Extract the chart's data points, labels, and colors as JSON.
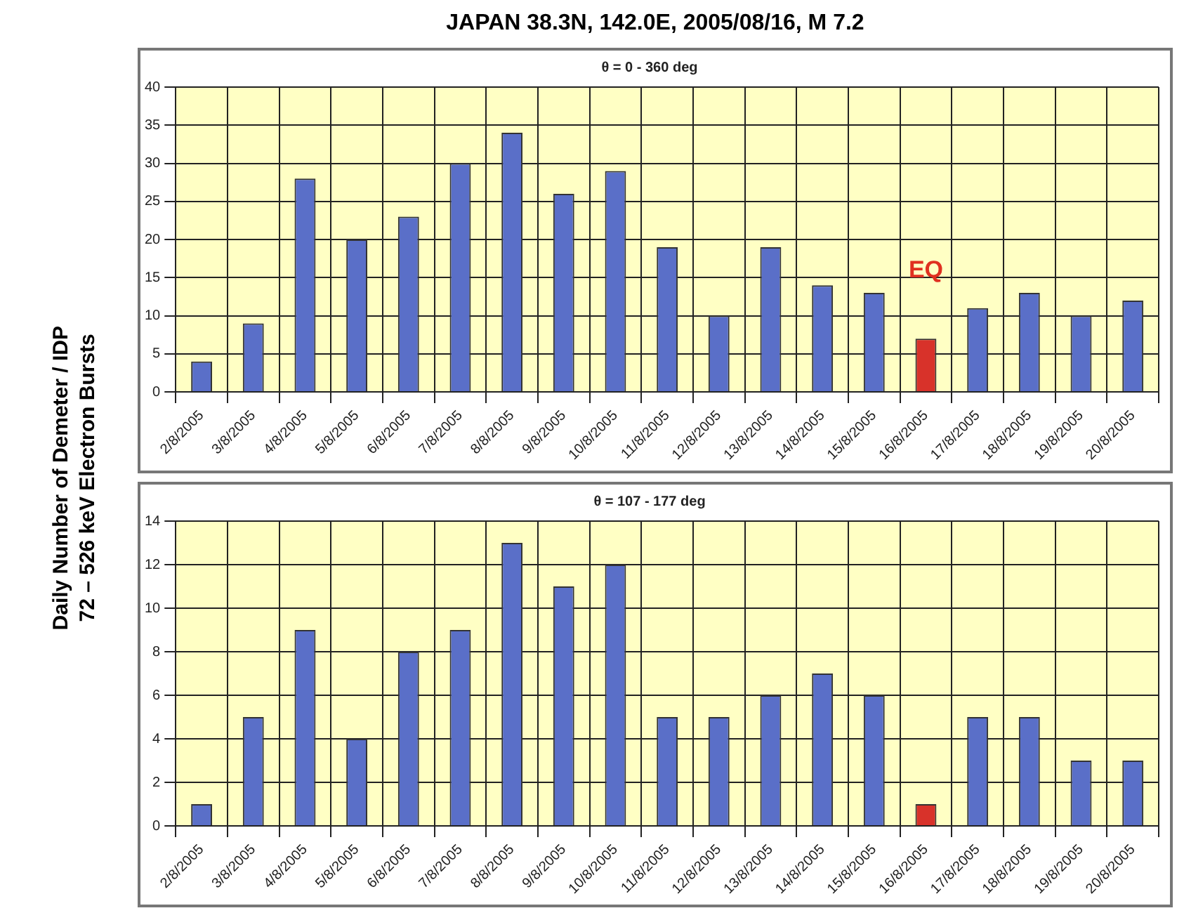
{
  "chart_data": [
    {
      "type": "bar",
      "title": "JAPAN 38.3N, 142.0E, 2005/08/16, M 7.2",
      "subtitle": "θ = 0 - 360 deg",
      "ylabel": "Daily Number of Demeter / IDP\n72 – 526 keV Electron Bursts",
      "categories": [
        "2/8/2005",
        "3/8/2005",
        "4/8/2005",
        "5/8/2005",
        "6/8/2005",
        "7/8/2005",
        "8/8/2005",
        "9/8/2005",
        "10/8/2005",
        "11/8/2005",
        "12/8/2005",
        "13/8/2005",
        "14/8/2005",
        "15/8/2005",
        "16/8/2005",
        "17/8/2005",
        "18/8/2005",
        "19/8/2005",
        "20/8/2005"
      ],
      "values": [
        4,
        9,
        28,
        20,
        23,
        30,
        34,
        26,
        29,
        19,
        10,
        19,
        14,
        13,
        7,
        11,
        13,
        10,
        12
      ],
      "colors": [
        "#5a6fc8",
        "#5a6fc8",
        "#5a6fc8",
        "#5a6fc8",
        "#5a6fc8",
        "#5a6fc8",
        "#5a6fc8",
        "#5a6fc8",
        "#5a6fc8",
        "#5a6fc8",
        "#5a6fc8",
        "#5a6fc8",
        "#5a6fc8",
        "#5a6fc8",
        "#d8322a",
        "#5a6fc8",
        "#5a6fc8",
        "#5a6fc8",
        "#5a6fc8"
      ],
      "ylim": [
        0,
        40
      ],
      "yticks": [
        0,
        5,
        10,
        15,
        20,
        25,
        30,
        35,
        40
      ],
      "grid": true,
      "legend": false,
      "annotations": [
        {
          "text": "EQ",
          "x": "16/8/2005",
          "y": 7
        }
      ]
    },
    {
      "type": "bar",
      "subtitle": "θ = 107 - 177 deg",
      "categories": [
        "2/8/2005",
        "3/8/2005",
        "4/8/2005",
        "5/8/2005",
        "6/8/2005",
        "7/8/2005",
        "8/8/2005",
        "9/8/2005",
        "10/8/2005",
        "11/8/2005",
        "12/8/2005",
        "13/8/2005",
        "14/8/2005",
        "15/8/2005",
        "16/8/2005",
        "17/8/2005",
        "18/8/2005",
        "19/8/2005",
        "20/8/2005"
      ],
      "values": [
        1,
        5,
        9,
        4,
        8,
        9,
        13,
        11,
        12,
        5,
        5,
        6,
        7,
        6,
        1,
        5,
        5,
        3,
        3
      ],
      "colors": [
        "#5a6fc8",
        "#5a6fc8",
        "#5a6fc8",
        "#5a6fc8",
        "#5a6fc8",
        "#5a6fc8",
        "#5a6fc8",
        "#5a6fc8",
        "#5a6fc8",
        "#5a6fc8",
        "#5a6fc8",
        "#5a6fc8",
        "#5a6fc8",
        "#5a6fc8",
        "#d8322a",
        "#5a6fc8",
        "#5a6fc8",
        "#5a6fc8",
        "#5a6fc8"
      ],
      "ylim": [
        0,
        14
      ],
      "yticks": [
        0,
        2,
        4,
        6,
        8,
        10,
        12,
        14
      ],
      "grid": true,
      "legend": false
    }
  ]
}
